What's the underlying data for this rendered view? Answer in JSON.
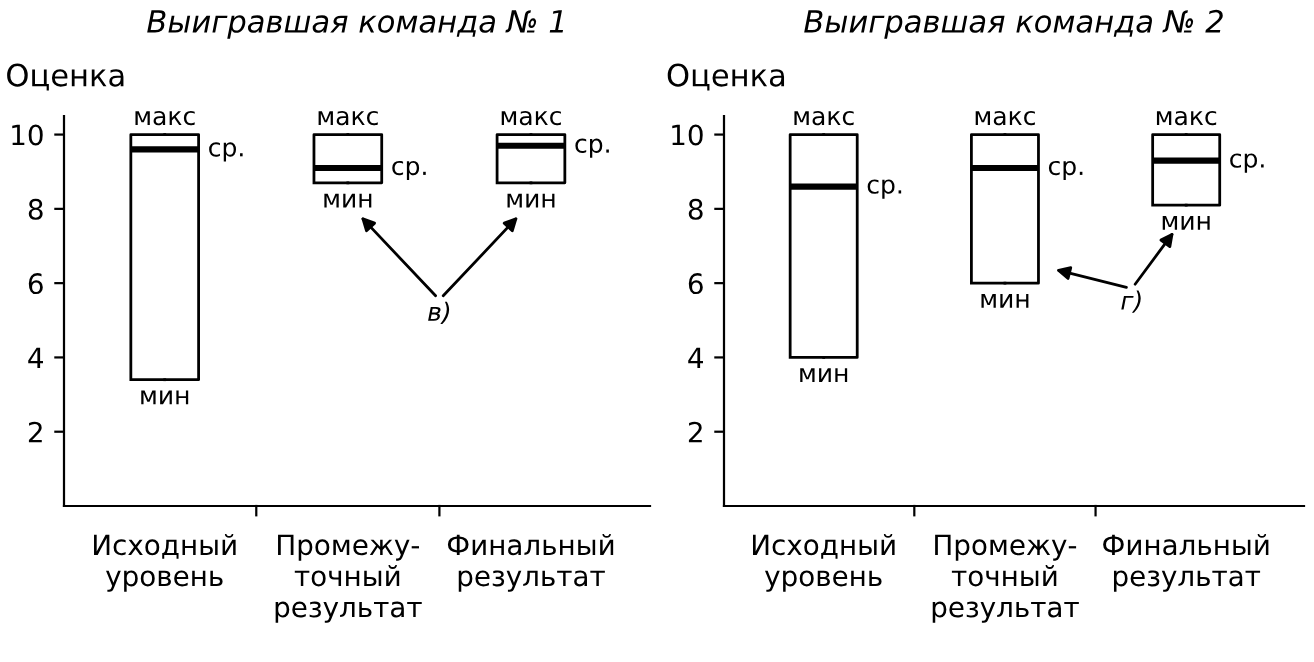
{
  "chart_data": [
    {
      "type": "box",
      "title": "Выигравшая команда № 1",
      "ylabel": "Оценка",
      "categories": [
        "Исходный\nуровень",
        "Промежу-\nточный\nрезультат",
        "Финальный\nрезультат"
      ],
      "boxes": [
        {
          "low": 3.4,
          "q1": 3.4,
          "median": 9.6,
          "q3": 10,
          "high": 10
        },
        {
          "low": 8.7,
          "q1": 8.7,
          "median": 9.1,
          "q3": 10,
          "high": 10
        },
        {
          "low": 8.7,
          "q1": 8.7,
          "median": 9.7,
          "q3": 10,
          "high": 10
        }
      ],
      "ylim": [
        0,
        10.5
      ],
      "yticks": [
        2,
        4,
        6,
        8,
        10
      ],
      "grid": false,
      "legend": false,
      "annotations": [
        {
          "text": "макс",
          "x": "Исходный\nуровень",
          "y": 10
        },
        {
          "text": "ср.",
          "x": "Исходный\nуровень",
          "y": 9.6
        },
        {
          "text": "мин",
          "x": "Исходный\nуровень",
          "y": 3.4
        },
        {
          "text": "макс",
          "x": "Промежу-\nточный\nрезультат",
          "y": 10
        },
        {
          "text": "ср.",
          "x": "Промежу-\nточный\nрезультат",
          "y": 9.1
        },
        {
          "text": "мин",
          "x": "Промежу-\nточный\nрезультат",
          "y": 8.7
        },
        {
          "text": "макс",
          "x": "Финальный\nрезультат",
          "y": 10
        },
        {
          "text": "ср.",
          "x": "Финальный\nрезультат",
          "y": 9.7
        },
        {
          "text": "мин",
          "x": "Финальный\nрезультат",
          "y": 8.7
        },
        "в)"
      ]
    },
    {
      "type": "box",
      "title": "Выигравшая команда № 2",
      "ylabel": "Оценка",
      "categories": [
        "Исходный\nуровень",
        "Промежу-\nточный\nрезультат",
        "Финальный\nрезультат"
      ],
      "boxes": [
        {
          "low": 4,
          "q1": 4,
          "median": 8.6,
          "q3": 10,
          "high": 10
        },
        {
          "low": 6,
          "q1": 6,
          "median": 9.1,
          "q3": 10,
          "high": 10
        },
        {
          "low": 8.1,
          "q1": 8.1,
          "median": 9.3,
          "q3": 10,
          "high": 10
        }
      ],
      "ylim": [
        0,
        10.5
      ],
      "yticks": [
        2,
        4,
        6,
        8,
        10
      ],
      "grid": false,
      "legend": false,
      "annotations": [
        {
          "text": "макс",
          "x": "Исходный\nуровень",
          "y": 10
        },
        {
          "text": "ср.",
          "x": "Исходный\nуровень",
          "y": 8.6
        },
        {
          "text": "мин",
          "x": "Исходный\nуровень",
          "y": 4
        },
        {
          "text": "макс",
          "x": "Промежу-\nточный\nрезультат",
          "y": 10
        },
        {
          "text": "ср.",
          "x": "Промежу-\nточный\nрезультат",
          "y": 9.1
        },
        {
          "text": "мин",
          "x": "Промежу-\nточный\nрезультат",
          "y": 6
        },
        {
          "text": "макс",
          "x": "Финальный\nрезультат",
          "y": 10
        },
        {
          "text": "ср.",
          "x": "Финальный\nрезультат",
          "y": 9.3
        },
        {
          "text": "мин",
          "x": "Финальный\nрезультат",
          "y": 8.1
        },
        "г)"
      ]
    }
  ]
}
